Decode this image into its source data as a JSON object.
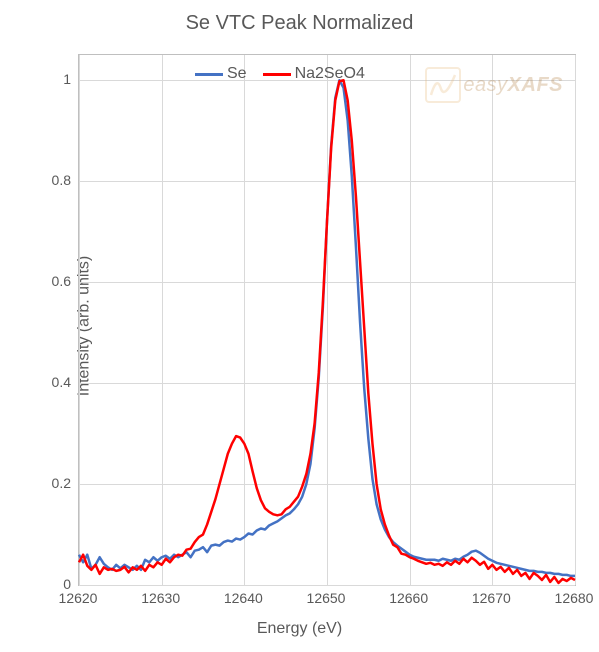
{
  "chart": {
    "type": "line",
    "title": "Se VTC Peak Normalized",
    "title_fontsize": 20,
    "title_color": "#595959",
    "xlabel": "Energy (eV)",
    "ylabel": "Intensity (arb. units)",
    "label_fontsize": 16,
    "label_color": "#595959",
    "background_color": "#ffffff",
    "grid_color": "#d9d9d9",
    "border_color": "#bfbfbf",
    "xlim": [
      12620,
      12680
    ],
    "ylim": [
      0,
      1.05
    ],
    "x_ticks": [
      12620,
      12630,
      12640,
      12650,
      12660,
      12670,
      12680
    ],
    "y_ticks": [
      0,
      0.2,
      0.4,
      0.6,
      0.8,
      1
    ],
    "tick_fontsize": 14,
    "tick_color": "#595959",
    "line_width": 2.5,
    "legend": {
      "position": "top-center-left",
      "items": [
        {
          "label": "Se",
          "color": "#4472c4"
        },
        {
          "label": "Na2SeO4",
          "color": "#ff0000"
        }
      ]
    },
    "watermark": {
      "text_light": "easy",
      "text_bold": "XAFS",
      "color": "#e8b878",
      "opacity": 0.28
    },
    "series": [
      {
        "name": "Se",
        "color": "#4472c4",
        "x": [
          12620,
          12620.5,
          12621,
          12621.5,
          12622,
          12622.5,
          12623,
          12623.5,
          12624,
          12624.5,
          12625,
          12625.5,
          12626,
          12626.5,
          12627,
          12627.5,
          12628,
          12628.5,
          12629,
          12629.5,
          12630,
          12630.5,
          12631,
          12631.5,
          12632,
          12632.5,
          12633,
          12633.5,
          12634,
          12634.5,
          12635,
          12635.5,
          12636,
          12636.5,
          12637,
          12637.5,
          12638,
          12638.5,
          12639,
          12639.5,
          12640,
          12640.5,
          12641,
          12641.5,
          12642,
          12642.5,
          12643,
          12643.5,
          12644,
          12644.5,
          12645,
          12645.5,
          12646,
          12646.5,
          12647,
          12647.5,
          12648,
          12648.5,
          12649,
          12649.5,
          12650,
          12650.5,
          12651,
          12651.5,
          12652,
          12652.5,
          12653,
          12653.5,
          12654,
          12654.5,
          12655,
          12655.5,
          12656,
          12656.5,
          12657,
          12657.5,
          12658,
          12658.5,
          12659,
          12659.5,
          12660,
          12660.5,
          12661,
          12661.5,
          12662,
          12662.5,
          12663,
          12663.5,
          12664,
          12664.5,
          12665,
          12665.5,
          12666,
          12666.5,
          12667,
          12667.5,
          12668,
          12668.5,
          12669,
          12669.5,
          12670,
          12670.5,
          12671,
          12671.5,
          12672,
          12672.5,
          12673,
          12673.5,
          12674,
          12674.5,
          12675,
          12675.5,
          12676,
          12676.5,
          12677,
          12677.5,
          12678,
          12678.5,
          12679,
          12679.5,
          12680
        ],
        "y": [
          0.06,
          0.045,
          0.06,
          0.032,
          0.04,
          0.055,
          0.042,
          0.035,
          0.03,
          0.04,
          0.033,
          0.04,
          0.035,
          0.03,
          0.038,
          0.03,
          0.05,
          0.045,
          0.055,
          0.048,
          0.055,
          0.058,
          0.052,
          0.06,
          0.055,
          0.06,
          0.065,
          0.055,
          0.068,
          0.07,
          0.075,
          0.065,
          0.078,
          0.08,
          0.078,
          0.085,
          0.088,
          0.086,
          0.092,
          0.09,
          0.095,
          0.102,
          0.1,
          0.108,
          0.112,
          0.11,
          0.118,
          0.122,
          0.126,
          0.132,
          0.138,
          0.142,
          0.15,
          0.16,
          0.175,
          0.2,
          0.24,
          0.31,
          0.41,
          0.55,
          0.72,
          0.87,
          0.965,
          1.0,
          0.985,
          0.92,
          0.81,
          0.67,
          0.52,
          0.39,
          0.29,
          0.21,
          0.16,
          0.13,
          0.11,
          0.095,
          0.085,
          0.078,
          0.072,
          0.066,
          0.06,
          0.056,
          0.054,
          0.052,
          0.05,
          0.05,
          0.05,
          0.048,
          0.052,
          0.05,
          0.048,
          0.052,
          0.05,
          0.056,
          0.06,
          0.066,
          0.068,
          0.064,
          0.058,
          0.052,
          0.048,
          0.044,
          0.042,
          0.04,
          0.038,
          0.036,
          0.034,
          0.032,
          0.03,
          0.028,
          0.028,
          0.026,
          0.026,
          0.024,
          0.024,
          0.022,
          0.022,
          0.02,
          0.02,
          0.018,
          0.018
        ]
      },
      {
        "name": "Na2SeO4",
        "color": "#ff0000",
        "x": [
          12620,
          12620.5,
          12621,
          12621.5,
          12622,
          12622.5,
          12623,
          12623.5,
          12624,
          12624.5,
          12625,
          12625.5,
          12626,
          12626.5,
          12627,
          12627.5,
          12628,
          12628.5,
          12629,
          12629.5,
          12630,
          12630.5,
          12631,
          12631.5,
          12632,
          12632.5,
          12633,
          12633.5,
          12634,
          12634.5,
          12635,
          12635.5,
          12636,
          12636.5,
          12637,
          12637.5,
          12638,
          12638.5,
          12639,
          12639.5,
          12640,
          12640.5,
          12641,
          12641.5,
          12642,
          12642.5,
          12643,
          12643.5,
          12644,
          12644.5,
          12645,
          12645.5,
          12646,
          12646.5,
          12647,
          12647.5,
          12648,
          12648.5,
          12649,
          12649.5,
          12650,
          12650.5,
          12651,
          12651.5,
          12652,
          12652.5,
          12653,
          12653.5,
          12654,
          12654.5,
          12655,
          12655.5,
          12656,
          12656.5,
          12657,
          12657.5,
          12658,
          12658.5,
          12659,
          12659.5,
          12660,
          12660.5,
          12661,
          12661.5,
          12662,
          12662.5,
          12663,
          12663.5,
          12664,
          12664.5,
          12665,
          12665.5,
          12666,
          12666.5,
          12667,
          12667.5,
          12668,
          12668.5,
          12669,
          12669.5,
          12670,
          12670.5,
          12671,
          12671.5,
          12672,
          12672.5,
          12673,
          12673.5,
          12674,
          12674.5,
          12675,
          12675.5,
          12676,
          12676.5,
          12677,
          12677.5,
          12678,
          12678.5,
          12679,
          12679.5,
          12680
        ],
        "y": [
          0.045,
          0.06,
          0.038,
          0.03,
          0.04,
          0.022,
          0.035,
          0.03,
          0.032,
          0.028,
          0.03,
          0.036,
          0.025,
          0.035,
          0.03,
          0.038,
          0.028,
          0.04,
          0.035,
          0.045,
          0.04,
          0.052,
          0.045,
          0.055,
          0.06,
          0.058,
          0.07,
          0.072,
          0.085,
          0.095,
          0.1,
          0.12,
          0.145,
          0.17,
          0.2,
          0.23,
          0.26,
          0.28,
          0.295,
          0.292,
          0.28,
          0.26,
          0.225,
          0.192,
          0.168,
          0.152,
          0.145,
          0.14,
          0.138,
          0.14,
          0.15,
          0.155,
          0.165,
          0.175,
          0.195,
          0.22,
          0.26,
          0.32,
          0.42,
          0.56,
          0.72,
          0.865,
          0.96,
          0.998,
          1.0,
          0.96,
          0.88,
          0.77,
          0.64,
          0.51,
          0.38,
          0.28,
          0.2,
          0.15,
          0.12,
          0.098,
          0.08,
          0.075,
          0.062,
          0.06,
          0.055,
          0.052,
          0.048,
          0.045,
          0.042,
          0.044,
          0.04,
          0.042,
          0.038,
          0.045,
          0.04,
          0.048,
          0.042,
          0.052,
          0.045,
          0.054,
          0.048,
          0.04,
          0.046,
          0.032,
          0.04,
          0.03,
          0.036,
          0.026,
          0.034,
          0.022,
          0.03,
          0.018,
          0.024,
          0.012,
          0.024,
          0.018,
          0.01,
          0.02,
          0.006,
          0.016,
          0.004,
          0.012,
          0.008,
          0.014,
          0.01
        ]
      }
    ]
  }
}
